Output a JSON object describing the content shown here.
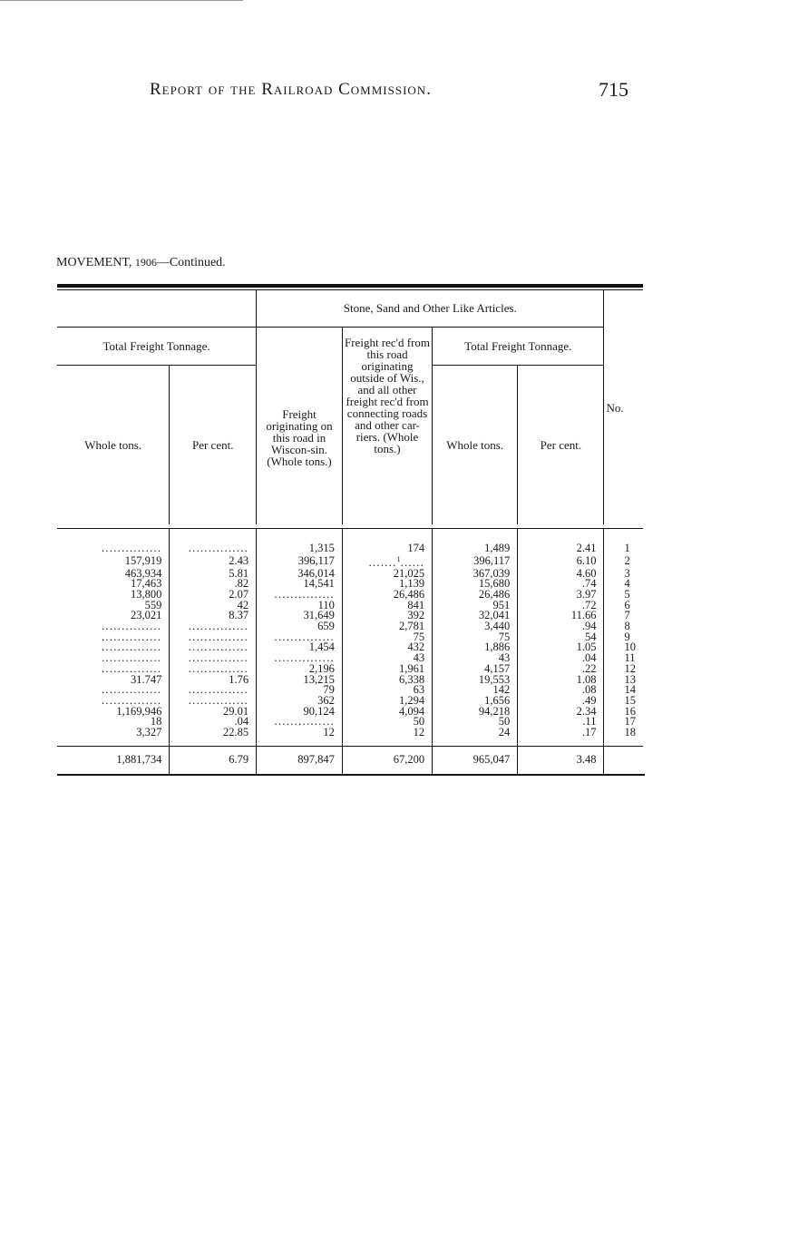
{
  "header": {
    "running_title": "Report of the Railroad Commission.",
    "page_number": "715"
  },
  "caption": {
    "prefix": "MOVEMENT,",
    "year": "1906",
    "suffix": "—Continued."
  },
  "table": {
    "group_title": "Stone, Sand and Other Like Articles.",
    "left_group": "Total Freight Tonnage.",
    "right_group": "Total Freight Tonnage.",
    "col_whole": "Whole tons.",
    "col_pct": "Per cent.",
    "col_orig": "Freight originating on this road in Wiscon-sin. (Whole tons.)",
    "col_rec": "Freight rec'd from this road originating outside of Wis., and all other freight rec'd from connecting roads and other car-riers. (Whole tons.)",
    "col_whole2": "Whole tons.",
    "col_pct2": "Per cent.",
    "col_no": "No.",
    "rows": [
      [
        "",
        "",
        "1,315",
        "174",
        "1,489",
        "2.41",
        "1"
      ],
      [
        "157,919",
        "2.43",
        "396,117",
        "1",
        "396,117",
        "6.10",
        "2"
      ],
      [
        "463,934",
        "5.81",
        "346,014",
        "21,025",
        "367,039",
        "4.60",
        "3"
      ],
      [
        "17,463",
        ".82",
        "14,541",
        "1,139",
        "15,680",
        ".74",
        "4"
      ],
      [
        "13,800",
        "2.07",
        "",
        "26,486",
        "26,486",
        "3.97",
        "5"
      ],
      [
        "559",
        "42",
        "110",
        "841",
        "951",
        ".72",
        "6"
      ],
      [
        "23,021",
        "8.37",
        "31,649",
        "392",
        "32,041",
        "11.66",
        "7"
      ],
      [
        "",
        "",
        "659",
        "2,781",
        "3,440",
        ".94",
        "8"
      ],
      [
        "",
        "",
        "",
        "75",
        "75",
        "54",
        "9"
      ],
      [
        "",
        "",
        "1,454",
        "432",
        "1,886",
        "1.05",
        "10"
      ],
      [
        "",
        "",
        "",
        "43",
        "43",
        ".04",
        "11"
      ],
      [
        "",
        "",
        "2,196",
        "1,961",
        "4,157",
        ".22",
        "12"
      ],
      [
        "31.747",
        "1.76",
        "13,215",
        "6,338",
        "19,553",
        "1.08",
        "13"
      ],
      [
        "",
        "",
        "79",
        "63",
        "142",
        ".08",
        "14"
      ],
      [
        "",
        "",
        "362",
        "1,294",
        "1,656",
        ".49",
        "15"
      ],
      [
        "1,169,946",
        "29.01",
        "90,124",
        "4,094",
        "94,218",
        "2.34",
        "16"
      ],
      [
        "18",
        ".04",
        "",
        "50",
        "50",
        ".11",
        "17"
      ],
      [
        "3,327",
        "22.85",
        "12",
        "12",
        "24",
        ".17",
        "18"
      ]
    ],
    "totals": [
      "1,881,734",
      "6.79",
      "897,847",
      "67,200",
      "965,047",
      "3.48",
      ""
    ]
  }
}
